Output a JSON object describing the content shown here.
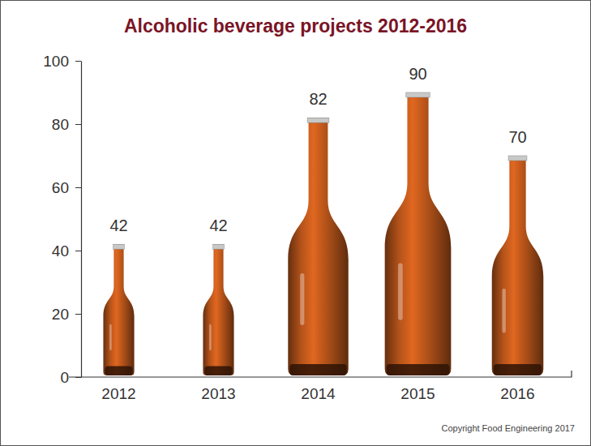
{
  "chart_data": {
    "type": "bar",
    "title": "Alcoholic beverage projects 2012-2016",
    "categories": [
      "2012",
      "2013",
      "2014",
      "2015",
      "2016"
    ],
    "values": [
      42,
      42,
      82,
      90,
      70
    ],
    "color": "#b5531a",
    "ylim": [
      0,
      100
    ],
    "yticks": [
      0,
      20,
      40,
      60,
      80,
      100
    ],
    "grid": false,
    "data_labels": true,
    "annotations": [
      "Copyright Food Engineering 2017"
    ]
  }
}
